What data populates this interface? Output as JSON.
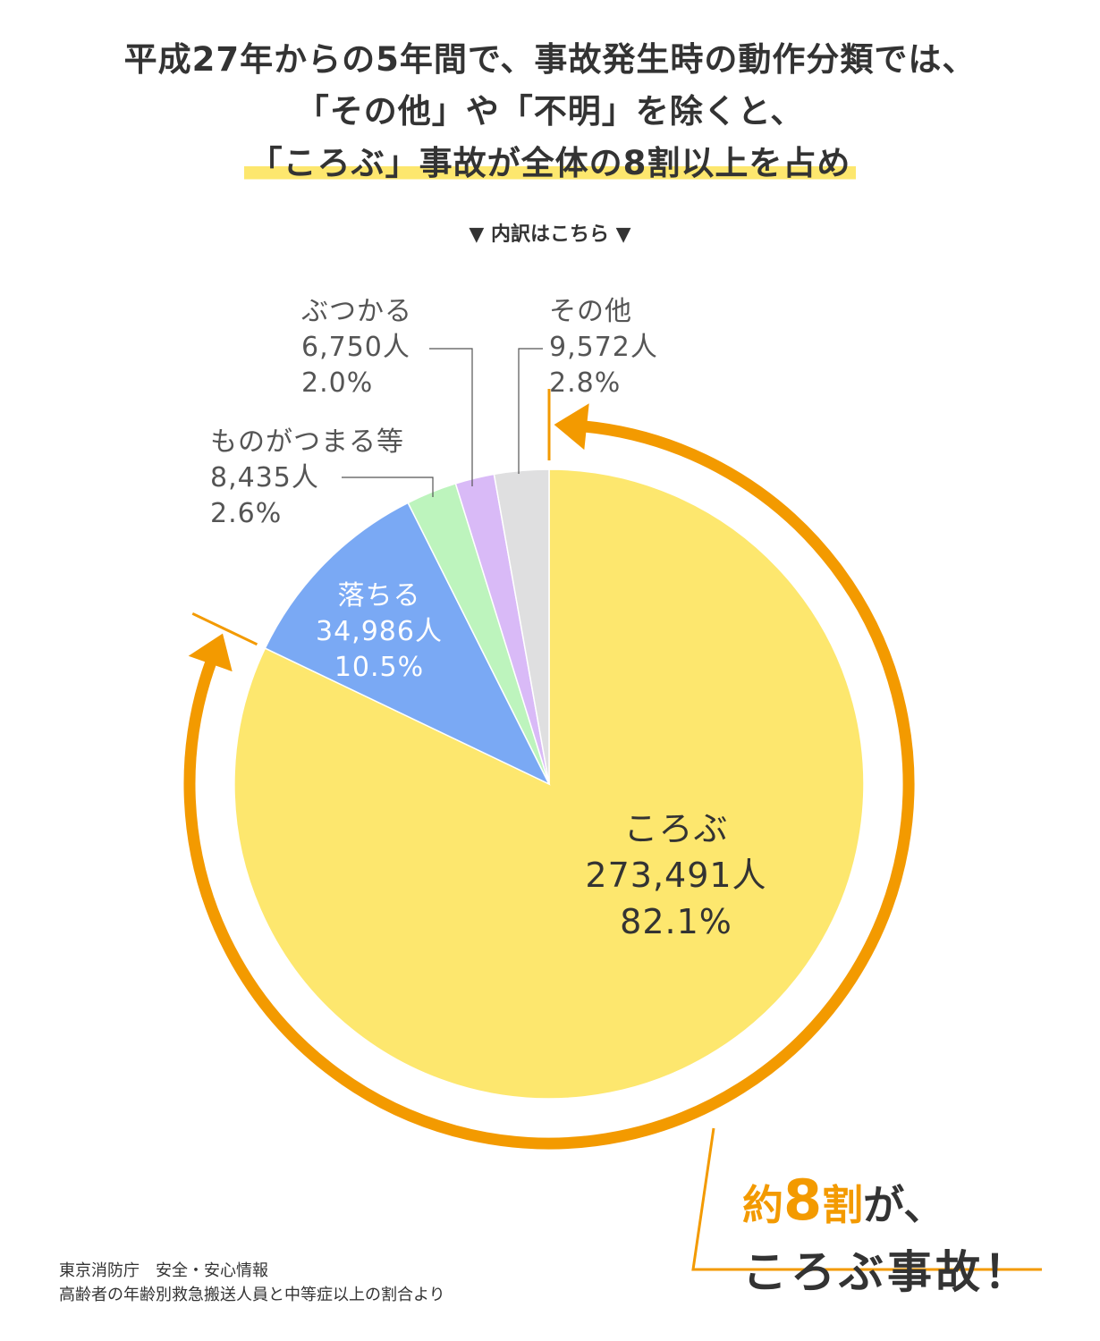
{
  "headline": {
    "line1": "平成27年からの5年間で、事故発生時の動作分類では、",
    "line2": "「その他」や「不明」を除くと、",
    "line3": "「ころぶ」事故が全体の8割以上を占め"
  },
  "breakdown_label": "▼ 内訳はこちら ▼",
  "chart_data": {
    "type": "pie",
    "start": "top, clockwise",
    "slices": [
      {
        "label": "ころぶ",
        "count": "273,491人",
        "percent": "82.1%",
        "value": 82.1,
        "color": "#fde76e"
      },
      {
        "label": "落ちる",
        "count": "34,986人",
        "percent": "10.5%",
        "value": 10.5,
        "color": "#7aa9f4"
      },
      {
        "label": "ものがつまる等",
        "count": "8,435人",
        "percent": "2.6%",
        "value": 2.6,
        "color": "#bdf4bd"
      },
      {
        "label": "ぶつかる",
        "count": "6,750人",
        "percent": "2.0%",
        "value": 2.0,
        "color": "#d9baf7"
      },
      {
        "label": "その他",
        "count": "9,572人",
        "percent": "2.8%",
        "value": 2.8,
        "color": "#dfdfe0"
      }
    ],
    "arc_color": "#f39a00"
  },
  "callout": {
    "prefix": "約",
    "number": "8",
    "unit": "割",
    "suffix": "が、",
    "line2": "ころぶ事故！"
  },
  "source": {
    "line1": "東京消防庁　安全・安心情報",
    "line2": "高齢者の年齢別救急搬送人員と中等症以上の割合より"
  }
}
